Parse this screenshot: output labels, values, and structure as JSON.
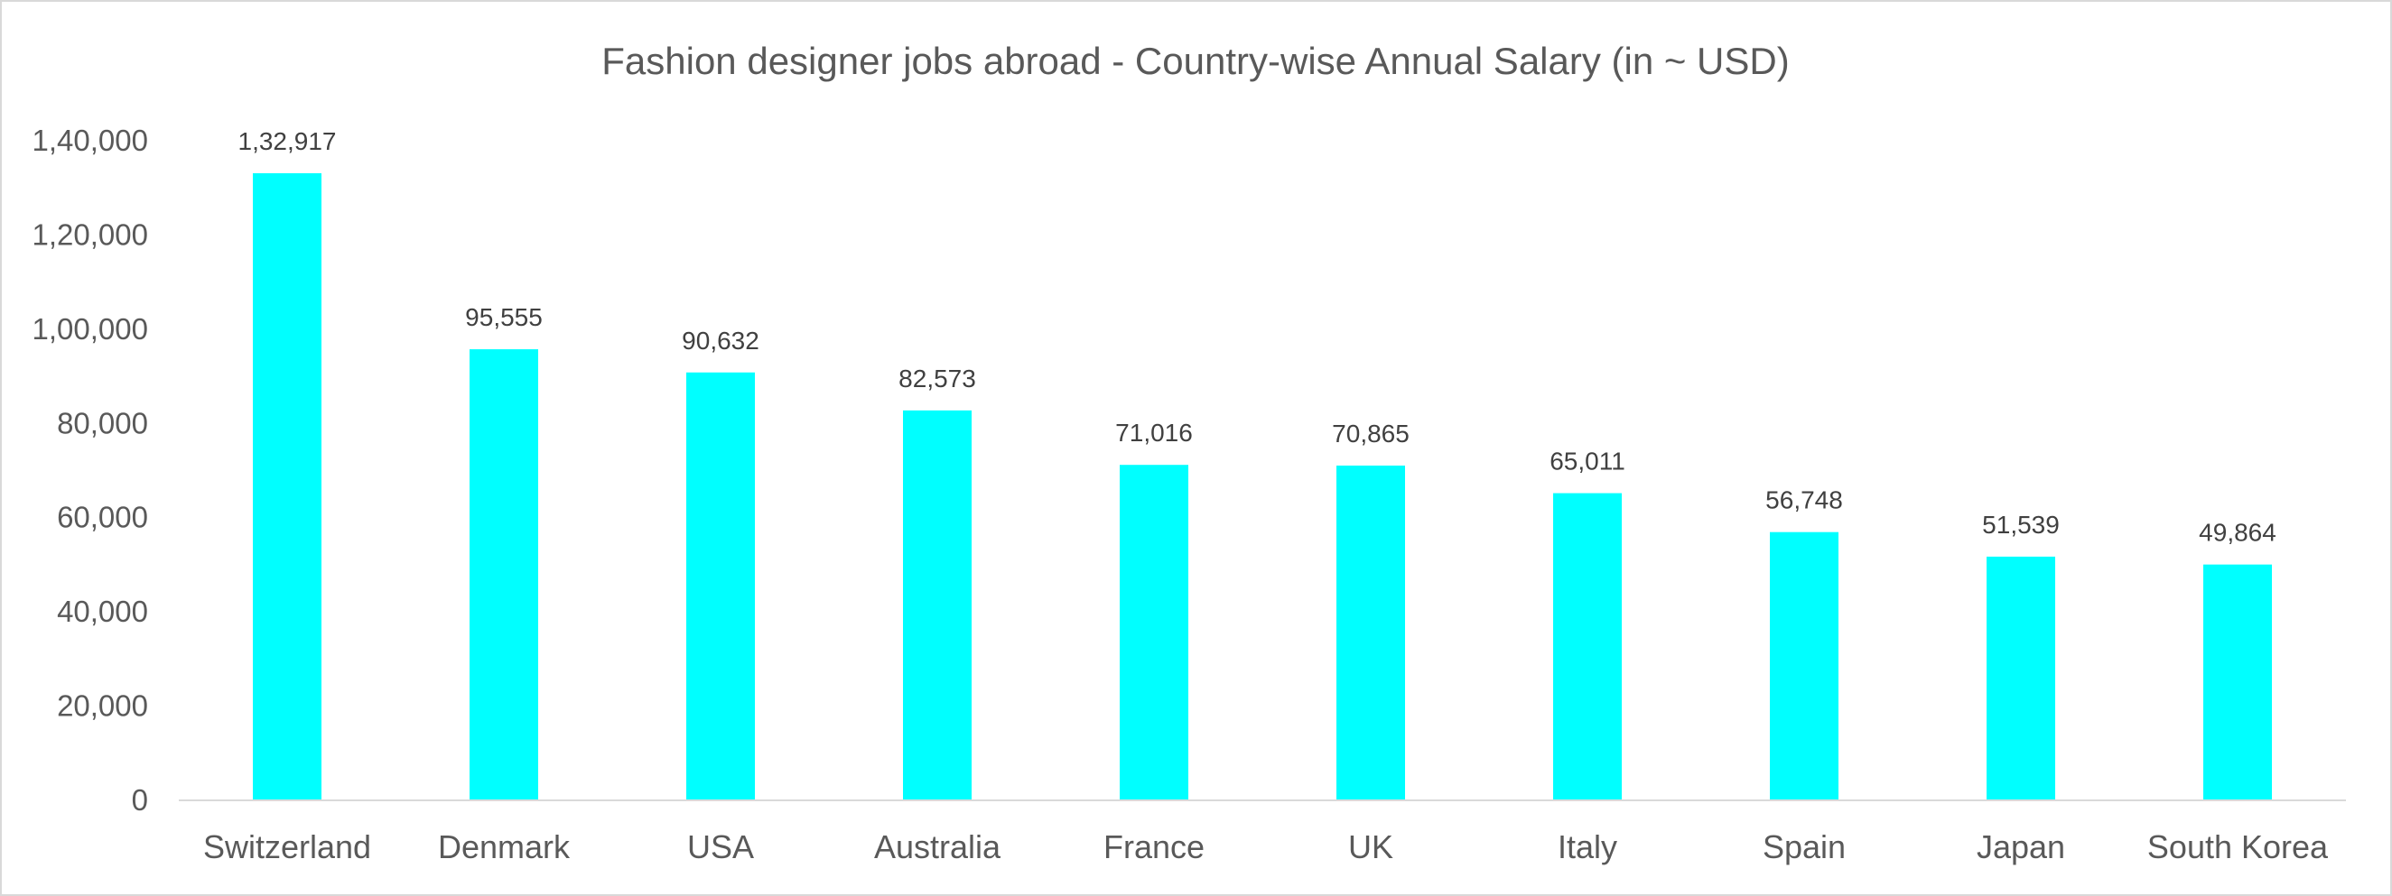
{
  "chart_data": {
    "type": "bar",
    "title": "Fashion designer jobs abroad - Country-wise Annual Salary (in ~ USD)",
    "xlabel": "",
    "ylabel": "",
    "categories": [
      "Switzerland",
      "Denmark",
      "USA",
      "Australia",
      "France",
      "UK",
      "Italy",
      "Spain",
      "Japan",
      "South Korea"
    ],
    "values": [
      132917,
      95555,
      90632,
      82573,
      71016,
      70865,
      65011,
      56748,
      51539,
      49864
    ],
    "value_labels": [
      "1,32,917",
      "95,555",
      "90,632",
      "82,573",
      "71,016",
      "70,865",
      "65,011",
      "56,748",
      "51,539",
      "49,864"
    ],
    "ylim": [
      0,
      140000
    ],
    "yticks": [
      0,
      20000,
      40000,
      60000,
      80000,
      100000,
      120000,
      140000
    ],
    "ytick_labels": [
      "0",
      "20,000",
      "40,000",
      "60,000",
      "80,000",
      "1,00,000",
      "1,20,000",
      "1,40,000"
    ],
    "grid": false,
    "legend": "none",
    "bar_color": "#00FFFF",
    "axis_color": "#D9D9D9",
    "text_color": "#595959",
    "label_color": "#404040"
  }
}
